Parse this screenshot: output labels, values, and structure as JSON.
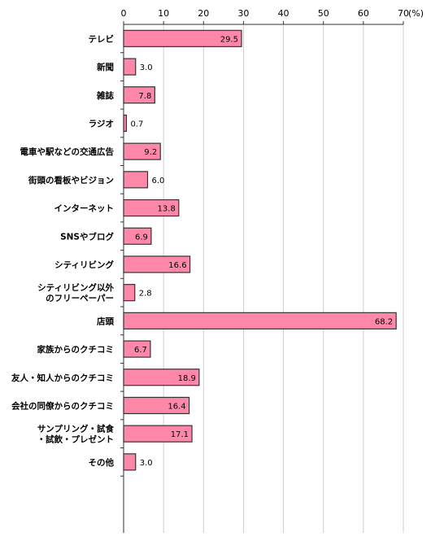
{
  "chart_data": {
    "type": "bar",
    "orientation": "horizontal",
    "unit": "(%)",
    "xlim": [
      0,
      70
    ],
    "ticks": [
      0,
      10,
      20,
      30,
      40,
      50,
      60,
      70
    ],
    "grid": true,
    "categories": [
      [
        "テレビ"
      ],
      [
        "新聞"
      ],
      [
        "雑誌"
      ],
      [
        "ラジオ"
      ],
      [
        "電車や駅などの交通広告"
      ],
      [
        "街頭の看板やビジョン"
      ],
      [
        "インターネット"
      ],
      [
        "SNSやブログ"
      ],
      [
        "シティリビング"
      ],
      [
        "シティリビング以外",
        "のフリーペーパー"
      ],
      [
        "店頭"
      ],
      [
        "家族からのクチコミ"
      ],
      [
        "友人・知人からのクチコミ"
      ],
      [
        "会社の同僚からのクチコミ"
      ],
      [
        "サンプリング・試食",
        "・試飲・プレゼント"
      ],
      [
        "その他"
      ]
    ],
    "values": [
      29.5,
      3.0,
      7.8,
      0.7,
      9.2,
      6.0,
      13.8,
      6.9,
      16.6,
      2.8,
      68.2,
      6.7,
      18.9,
      16.4,
      17.1,
      3.0
    ],
    "value_labels": [
      "29.5",
      "3.0",
      "7.8",
      "0.7",
      "9.2",
      "6.0",
      "13.8",
      "6.9",
      "16.6",
      "2.8",
      "68.2",
      "6.7",
      "18.9",
      "16.4",
      "17.1",
      "3.0"
    ],
    "bar_color": "#ff88aa",
    "bar_border": "#333333"
  }
}
